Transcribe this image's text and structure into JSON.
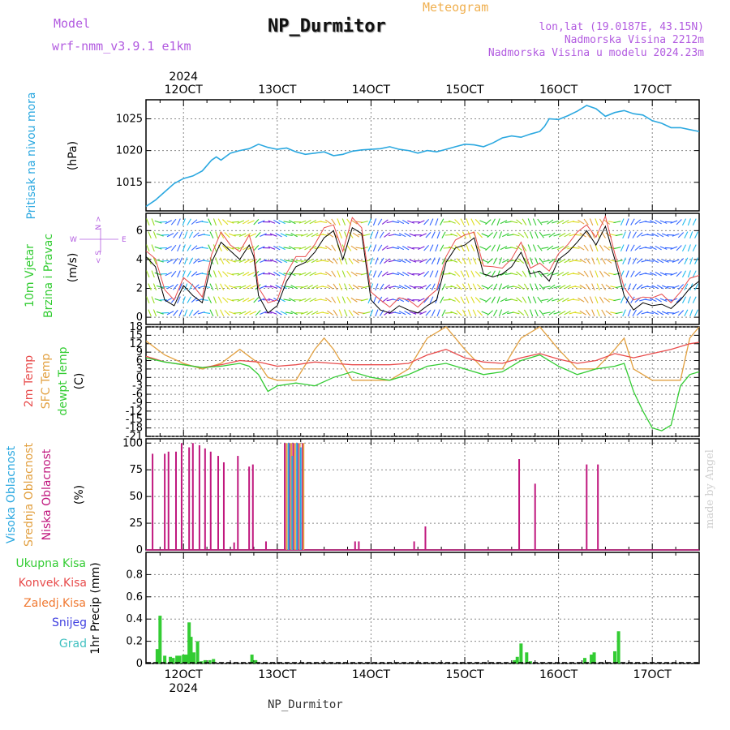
{
  "header": {
    "model_label": "Model",
    "model_name": "wrf-nmm_v3.9.1  e1km",
    "station": "NP_Durmitor",
    "meteogram": "Meteogram",
    "lonlat": "lon,lat (19.0187E, 43.15N)",
    "elevation": "Nadmorska Visina 2212m",
    "model_elevation": "Nadmorska Visina u modelu 2024.23m"
  },
  "footer": {
    "station": "NP_Durmitor",
    "year": "2024",
    "watermark": "made by Angel"
  },
  "colors": {
    "pressure": "#2ba8e0",
    "temp2m": "#e84c4c",
    "sfc_temp": "#e2a040",
    "dewpoint": "#33cc33",
    "high_cloud": "#2ba8e0",
    "mid_cloud": "#e2a040",
    "low_cloud": "#c0187e",
    "total_precip": "#33cc33",
    "convective": "#e84c4c",
    "freezing": "#f07830",
    "snow": "#4040e0",
    "hail": "#40c0c0",
    "label_purple": "#b25be0"
  },
  "chart_data": [
    {
      "type": "line",
      "panel": "pressure",
      "y_label_title": "Pritisak na nivou mora",
      "unit": "(hPa)",
      "x_ticks": [
        "12OCT",
        "13OCT",
        "14OCT",
        "15OCT",
        "16OCT",
        "17OCT"
      ],
      "year_label": "2024",
      "xlim": [
        11.6,
        17.5
      ],
      "ylim": [
        1010.5,
        1028
      ],
      "yticks": [
        1015,
        1020,
        1025
      ],
      "grid": true,
      "series": [
        {
          "name": "Pritisak na nivou mora",
          "x": [
            11.6,
            11.7,
            11.8,
            11.9,
            12.0,
            12.1,
            12.2,
            12.3,
            12.35,
            12.4,
            12.5,
            12.6,
            12.7,
            12.8,
            12.9,
            13.0,
            13.1,
            13.2,
            13.3,
            13.4,
            13.5,
            13.6,
            13.7,
            13.8,
            13.9,
            14.0,
            14.1,
            14.2,
            14.3,
            14.4,
            14.5,
            14.6,
            14.7,
            14.8,
            14.9,
            15.0,
            15.1,
            15.2,
            15.3,
            15.4,
            15.5,
            15.6,
            15.7,
            15.8,
            15.85,
            15.9,
            16.0,
            16.1,
            16.2,
            16.3,
            16.4,
            16.5,
            16.6,
            16.7,
            16.8,
            16.9,
            17.0,
            17.1,
            17.2,
            17.3,
            17.4,
            17.5
          ],
          "y": [
            1011.2,
            1012.2,
            1013.5,
            1014.8,
            1015.6,
            1016.0,
            1016.8,
            1018.5,
            1019.0,
            1018.5,
            1019.6,
            1020.0,
            1020.3,
            1021.0,
            1020.5,
            1020.2,
            1020.4,
            1019.8,
            1019.4,
            1019.6,
            1019.8,
            1019.2,
            1019.4,
            1019.9,
            1020.1,
            1020.2,
            1020.3,
            1020.6,
            1020.2,
            1020.0,
            1019.6,
            1020.0,
            1019.8,
            1020.2,
            1020.6,
            1021.0,
            1020.9,
            1020.6,
            1021.2,
            1022.0,
            1022.3,
            1022.1,
            1022.6,
            1023.0,
            1023.8,
            1025.0,
            1024.9,
            1025.5,
            1026.2,
            1027.1,
            1026.6,
            1025.4,
            1026.0,
            1026.3,
            1025.8,
            1025.6,
            1024.7,
            1024.3,
            1023.6,
            1023.6,
            1023.3,
            1023.0
          ]
        }
      ]
    },
    {
      "type": "line",
      "panel": "wind",
      "y_label_title": "10m Vjetar",
      "y_label_sub": "Brzina i Pravac",
      "unit": "(m/s)",
      "compass": [
        "N",
        "S",
        "W",
        "E"
      ],
      "xlim": [
        11.6,
        17.5
      ],
      "ylim": [
        -0.5,
        7.2
      ],
      "yticks": [
        0,
        2,
        4,
        6
      ],
      "grid": true,
      "series": [
        {
          "name": "speed",
          "x": [
            11.6,
            11.7,
            11.8,
            11.9,
            12.0,
            12.1,
            12.2,
            12.3,
            12.4,
            12.5,
            12.6,
            12.7,
            12.75,
            12.8,
            12.9,
            13.0,
            13.1,
            13.2,
            13.3,
            13.4,
            13.5,
            13.6,
            13.7,
            13.8,
            13.9,
            14.0,
            14.1,
            14.2,
            14.3,
            14.4,
            14.5,
            14.6,
            14.7,
            14.8,
            14.9,
            15.0,
            15.1,
            15.2,
            15.3,
            15.4,
            15.5,
            15.6,
            15.7,
            15.8,
            15.9,
            16.0,
            16.1,
            16.2,
            16.3,
            16.4,
            16.5,
            16.6,
            16.7,
            16.8,
            16.9,
            17.0,
            17.1,
            17.2,
            17.3,
            17.4,
            17.5
          ],
          "y": [
            4.2,
            3.5,
            1.2,
            0.8,
            2.2,
            1.5,
            1.0,
            3.8,
            5.2,
            4.6,
            4.0,
            5.0,
            4.2,
            1.5,
            0.3,
            0.8,
            2.5,
            3.5,
            3.8,
            4.5,
            5.5,
            6.0,
            4.0,
            6.2,
            5.8,
            1.2,
            0.5,
            0.3,
            0.8,
            0.5,
            0.3,
            0.8,
            1.2,
            3.8,
            4.8,
            5.0,
            5.5,
            3.0,
            2.8,
            3.0,
            3.5,
            4.5,
            3.0,
            3.2,
            2.5,
            4.0,
            4.5,
            5.2,
            6.0,
            5.0,
            6.3,
            4.0,
            1.5,
            0.5,
            1.0,
            0.8,
            0.9,
            0.6,
            1.2,
            2.0,
            2.5
          ]
        }
      ]
    },
    {
      "type": "line",
      "panel": "temperature",
      "y_labels": [
        "2m Temp",
        "SFC Temp",
        "dewpt Temp"
      ],
      "unit": "(C)",
      "xlim": [
        11.6,
        17.5
      ],
      "ylim": [
        -21,
        18
      ],
      "yticks": [
        18,
        15,
        12,
        9,
        6,
        3,
        0,
        -3,
        -6,
        -9,
        -12,
        -15,
        -18,
        -21
      ],
      "grid": true,
      "series": [
        {
          "name": "2m Temp",
          "x": [
            11.6,
            11.8,
            12.0,
            12.2,
            12.4,
            12.6,
            12.8,
            13.0,
            13.2,
            13.4,
            13.6,
            13.8,
            14.0,
            14.2,
            14.4,
            14.6,
            14.8,
            15.0,
            15.2,
            15.4,
            15.6,
            15.8,
            16.0,
            16.2,
            16.4,
            16.6,
            16.8,
            17.0,
            17.2,
            17.4,
            17.5
          ],
          "y": [
            7.5,
            5.5,
            4.5,
            3.5,
            4.5,
            6.0,
            5.5,
            4.0,
            4.5,
            5.5,
            5.0,
            4.5,
            4.5,
            4.5,
            5.0,
            8.0,
            10.0,
            7.0,
            5.5,
            5.0,
            7.0,
            8.5,
            6.5,
            5.0,
            6.0,
            8.5,
            7.0,
            8.5,
            10.0,
            12.0,
            12.5
          ]
        },
        {
          "name": "SFC Temp",
          "x": [
            11.6,
            11.8,
            12.0,
            12.2,
            12.4,
            12.6,
            12.8,
            12.9,
            13.0,
            13.2,
            13.4,
            13.5,
            13.6,
            13.8,
            14.0,
            14.2,
            14.4,
            14.6,
            14.8,
            15.0,
            15.2,
            15.4,
            15.6,
            15.8,
            16.0,
            16.2,
            16.4,
            16.6,
            16.7,
            16.8,
            17.0,
            17.2,
            17.3,
            17.4,
            17.5
          ],
          "y": [
            13.0,
            8.0,
            5.0,
            3.0,
            5.0,
            10.0,
            5.0,
            0.0,
            -1.0,
            -1.0,
            10.0,
            14.0,
            10.0,
            -1.0,
            -1.0,
            -1.0,
            3.0,
            14.0,
            18.0,
            10.0,
            3.0,
            3.0,
            14.0,
            18.0,
            10.0,
            3.0,
            3.0,
            10.0,
            14.0,
            3.0,
            -1.0,
            -1.0,
            -1.0,
            14.0,
            18.0
          ]
        },
        {
          "name": "dewpt Temp",
          "x": [
            11.6,
            11.8,
            12.0,
            12.2,
            12.4,
            12.6,
            12.7,
            12.8,
            12.9,
            13.0,
            13.2,
            13.4,
            13.6,
            13.8,
            14.0,
            14.2,
            14.4,
            14.6,
            14.8,
            15.0,
            15.2,
            15.4,
            15.6,
            15.8,
            16.0,
            16.2,
            16.4,
            16.6,
            16.7,
            16.8,
            16.9,
            17.0,
            17.1,
            17.2,
            17.3,
            17.4,
            17.5
          ],
          "y": [
            7.0,
            5.5,
            4.5,
            3.5,
            4.0,
            5.0,
            4.0,
            1.0,
            -5.0,
            -3.0,
            -2.0,
            -3.0,
            0.0,
            2.0,
            0.0,
            -1.0,
            1.0,
            4.0,
            5.0,
            3.0,
            1.0,
            2.0,
            6.0,
            8.0,
            4.0,
            1.0,
            3.0,
            4.0,
            5.0,
            -5.0,
            -12.0,
            -18.0,
            -19.0,
            -17.0,
            -3.0,
            1.0,
            2.0
          ]
        }
      ]
    },
    {
      "type": "bar",
      "panel": "cloud",
      "y_labels": [
        "Visoka Oblacnost",
        "Srednja Oblacnost",
        "Niska Oblacnost"
      ],
      "unit": "(%)",
      "xlim": [
        11.6,
        17.5
      ],
      "ylim": [
        0,
        104
      ],
      "yticks": [
        0,
        25,
        50,
        75,
        100
      ],
      "grid": true,
      "series": [
        {
          "name": "Niska Oblacnost",
          "x": [
            11.67,
            11.8,
            11.84,
            11.92,
            11.98,
            12.06,
            12.1,
            12.17,
            12.23,
            12.29,
            12.37,
            12.43,
            12.54,
            12.58,
            12.7,
            12.74,
            12.88,
            13.08,
            13.13,
            13.17,
            13.22,
            13.27,
            13.83,
            13.87,
            14.46,
            14.58,
            15.58,
            15.75,
            16.3,
            16.42
          ],
          "y": [
            90,
            90,
            92,
            92,
            100,
            96,
            100,
            98,
            95,
            92,
            88,
            82,
            7,
            88,
            78,
            80,
            8,
            100,
            100,
            100,
            100,
            100,
            8,
            8,
            8,
            22,
            85,
            62,
            80,
            80
          ]
        },
        {
          "name": "Srednja Oblacnost",
          "x": [
            13.1,
            13.15,
            13.19,
            13.24,
            13.28
          ],
          "y": [
            100,
            100,
            100,
            100,
            100
          ]
        },
        {
          "name": "Visoka Oblacnost",
          "x": [
            13.12,
            13.16,
            13.21,
            13.25
          ],
          "y": [
            100,
            88,
            100,
            96
          ]
        }
      ]
    },
    {
      "type": "bar",
      "panel": "precip",
      "y_labels": [
        "Ukupna Kisa",
        "Konvek.Kisa",
        "Zaledj.Kisa",
        "Snijeg",
        "Grad"
      ],
      "unit": "1hr Precip (mm)",
      "xlim": [
        11.6,
        17.5
      ],
      "ylim": [
        0,
        1.0
      ],
      "yticks": [
        0,
        0.2,
        0.4,
        0.6,
        0.8
      ],
      "grid": true,
      "x_ticks": [
        "12OCT",
        "13OCT",
        "14OCT",
        "15OCT",
        "16OCT",
        "17OCT"
      ],
      "series": [
        {
          "name": "Ukupna Kisa",
          "x": [
            11.72,
            11.75,
            11.8,
            11.86,
            11.89,
            11.93,
            11.96,
            12.0,
            12.03,
            12.06,
            12.08,
            12.11,
            12.15,
            12.19,
            12.23,
            12.28,
            12.32,
            12.37,
            12.4,
            12.73,
            12.77,
            15.53,
            15.56,
            15.6,
            15.66,
            15.7,
            16.28,
            16.35,
            16.38,
            16.6,
            16.64
          ],
          "y": [
            0.13,
            0.43,
            0.07,
            0.06,
            0.05,
            0.07,
            0.07,
            0.08,
            0.08,
            0.37,
            0.24,
            0.1,
            0.2,
            0.02,
            0.03,
            0.03,
            0.04,
            0.0,
            0.0,
            0.08,
            0.03,
            0.03,
            0.06,
            0.18,
            0.1,
            0.02,
            0.05,
            0.08,
            0.1,
            0.11,
            0.29
          ]
        }
      ]
    }
  ]
}
